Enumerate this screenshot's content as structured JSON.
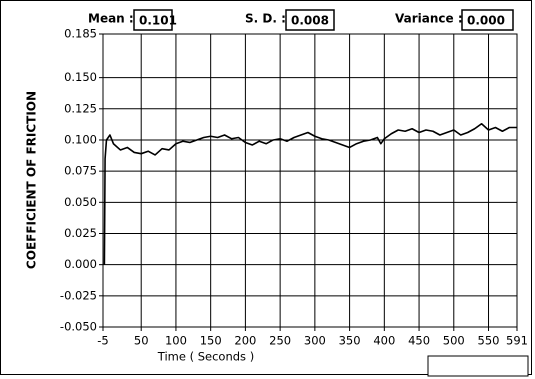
{
  "chart_data": {
    "type": "line",
    "stats": [
      {
        "label": "Mean :",
        "value": "0.101"
      },
      {
        "label": "S. D. :",
        "value": "0.008"
      },
      {
        "label": "Variance :",
        "value": "0.000"
      }
    ],
    "x_label": "Time ( Seconds )",
    "y_label": "COEFFICIENT OF FRICTION",
    "x": [
      -3,
      -2,
      0,
      5,
      10,
      20,
      30,
      40,
      50,
      60,
      70,
      80,
      90,
      100,
      110,
      120,
      130,
      140,
      150,
      160,
      170,
      180,
      190,
      200,
      210,
      220,
      230,
      240,
      250,
      260,
      270,
      280,
      290,
      300,
      310,
      320,
      330,
      340,
      350,
      360,
      370,
      380,
      390,
      395,
      400,
      410,
      420,
      430,
      440,
      450,
      460,
      470,
      480,
      490,
      500,
      510,
      520,
      530,
      540,
      550,
      560,
      570,
      580,
      591
    ],
    "series": [
      {
        "color": "#000000",
        "values": [
          0.0,
          0.085,
          0.1,
          0.104,
          0.097,
          0.092,
          0.094,
          0.09,
          0.089,
          0.091,
          0.088,
          0.093,
          0.092,
          0.097,
          0.099,
          0.098,
          0.1,
          0.102,
          0.103,
          0.102,
          0.104,
          0.101,
          0.102,
          0.098,
          0.096,
          0.099,
          0.097,
          0.1,
          0.101,
          0.099,
          0.102,
          0.104,
          0.106,
          0.103,
          0.101,
          0.1,
          0.098,
          0.096,
          0.094,
          0.097,
          0.099,
          0.1,
          0.102,
          0.097,
          0.101,
          0.105,
          0.108,
          0.107,
          0.109,
          0.106,
          0.108,
          0.107,
          0.104,
          0.106,
          0.108,
          0.104,
          0.106,
          0.109,
          0.113,
          0.108,
          0.11,
          0.107,
          0.11,
          0.11
        ]
      }
    ],
    "xlim": [
      -5,
      591
    ],
    "xticks": [
      -5,
      50,
      100,
      150,
      200,
      250,
      300,
      350,
      400,
      450,
      500,
      550,
      591
    ],
    "ylim": [
      -0.05,
      0.185
    ],
    "yticks": [
      {
        "value": 0.185,
        "label": "0.185"
      },
      {
        "value": 0.15,
        "label": "0.150"
      },
      {
        "value": 0.125,
        "label": "0.125"
      },
      {
        "value": 0.1,
        "label": "0.100"
      },
      {
        "value": 0.075,
        "label": "0.075"
      },
      {
        "value": 0.05,
        "label": "0.050"
      },
      {
        "value": 0.025,
        "label": "0.025"
      },
      {
        "value": 0,
        "label": "0.000"
      },
      {
        "value": -0.025,
        "label": "-0.025"
      },
      {
        "value": -0.05,
        "label": "-0.050"
      }
    ],
    "grid": true
  }
}
